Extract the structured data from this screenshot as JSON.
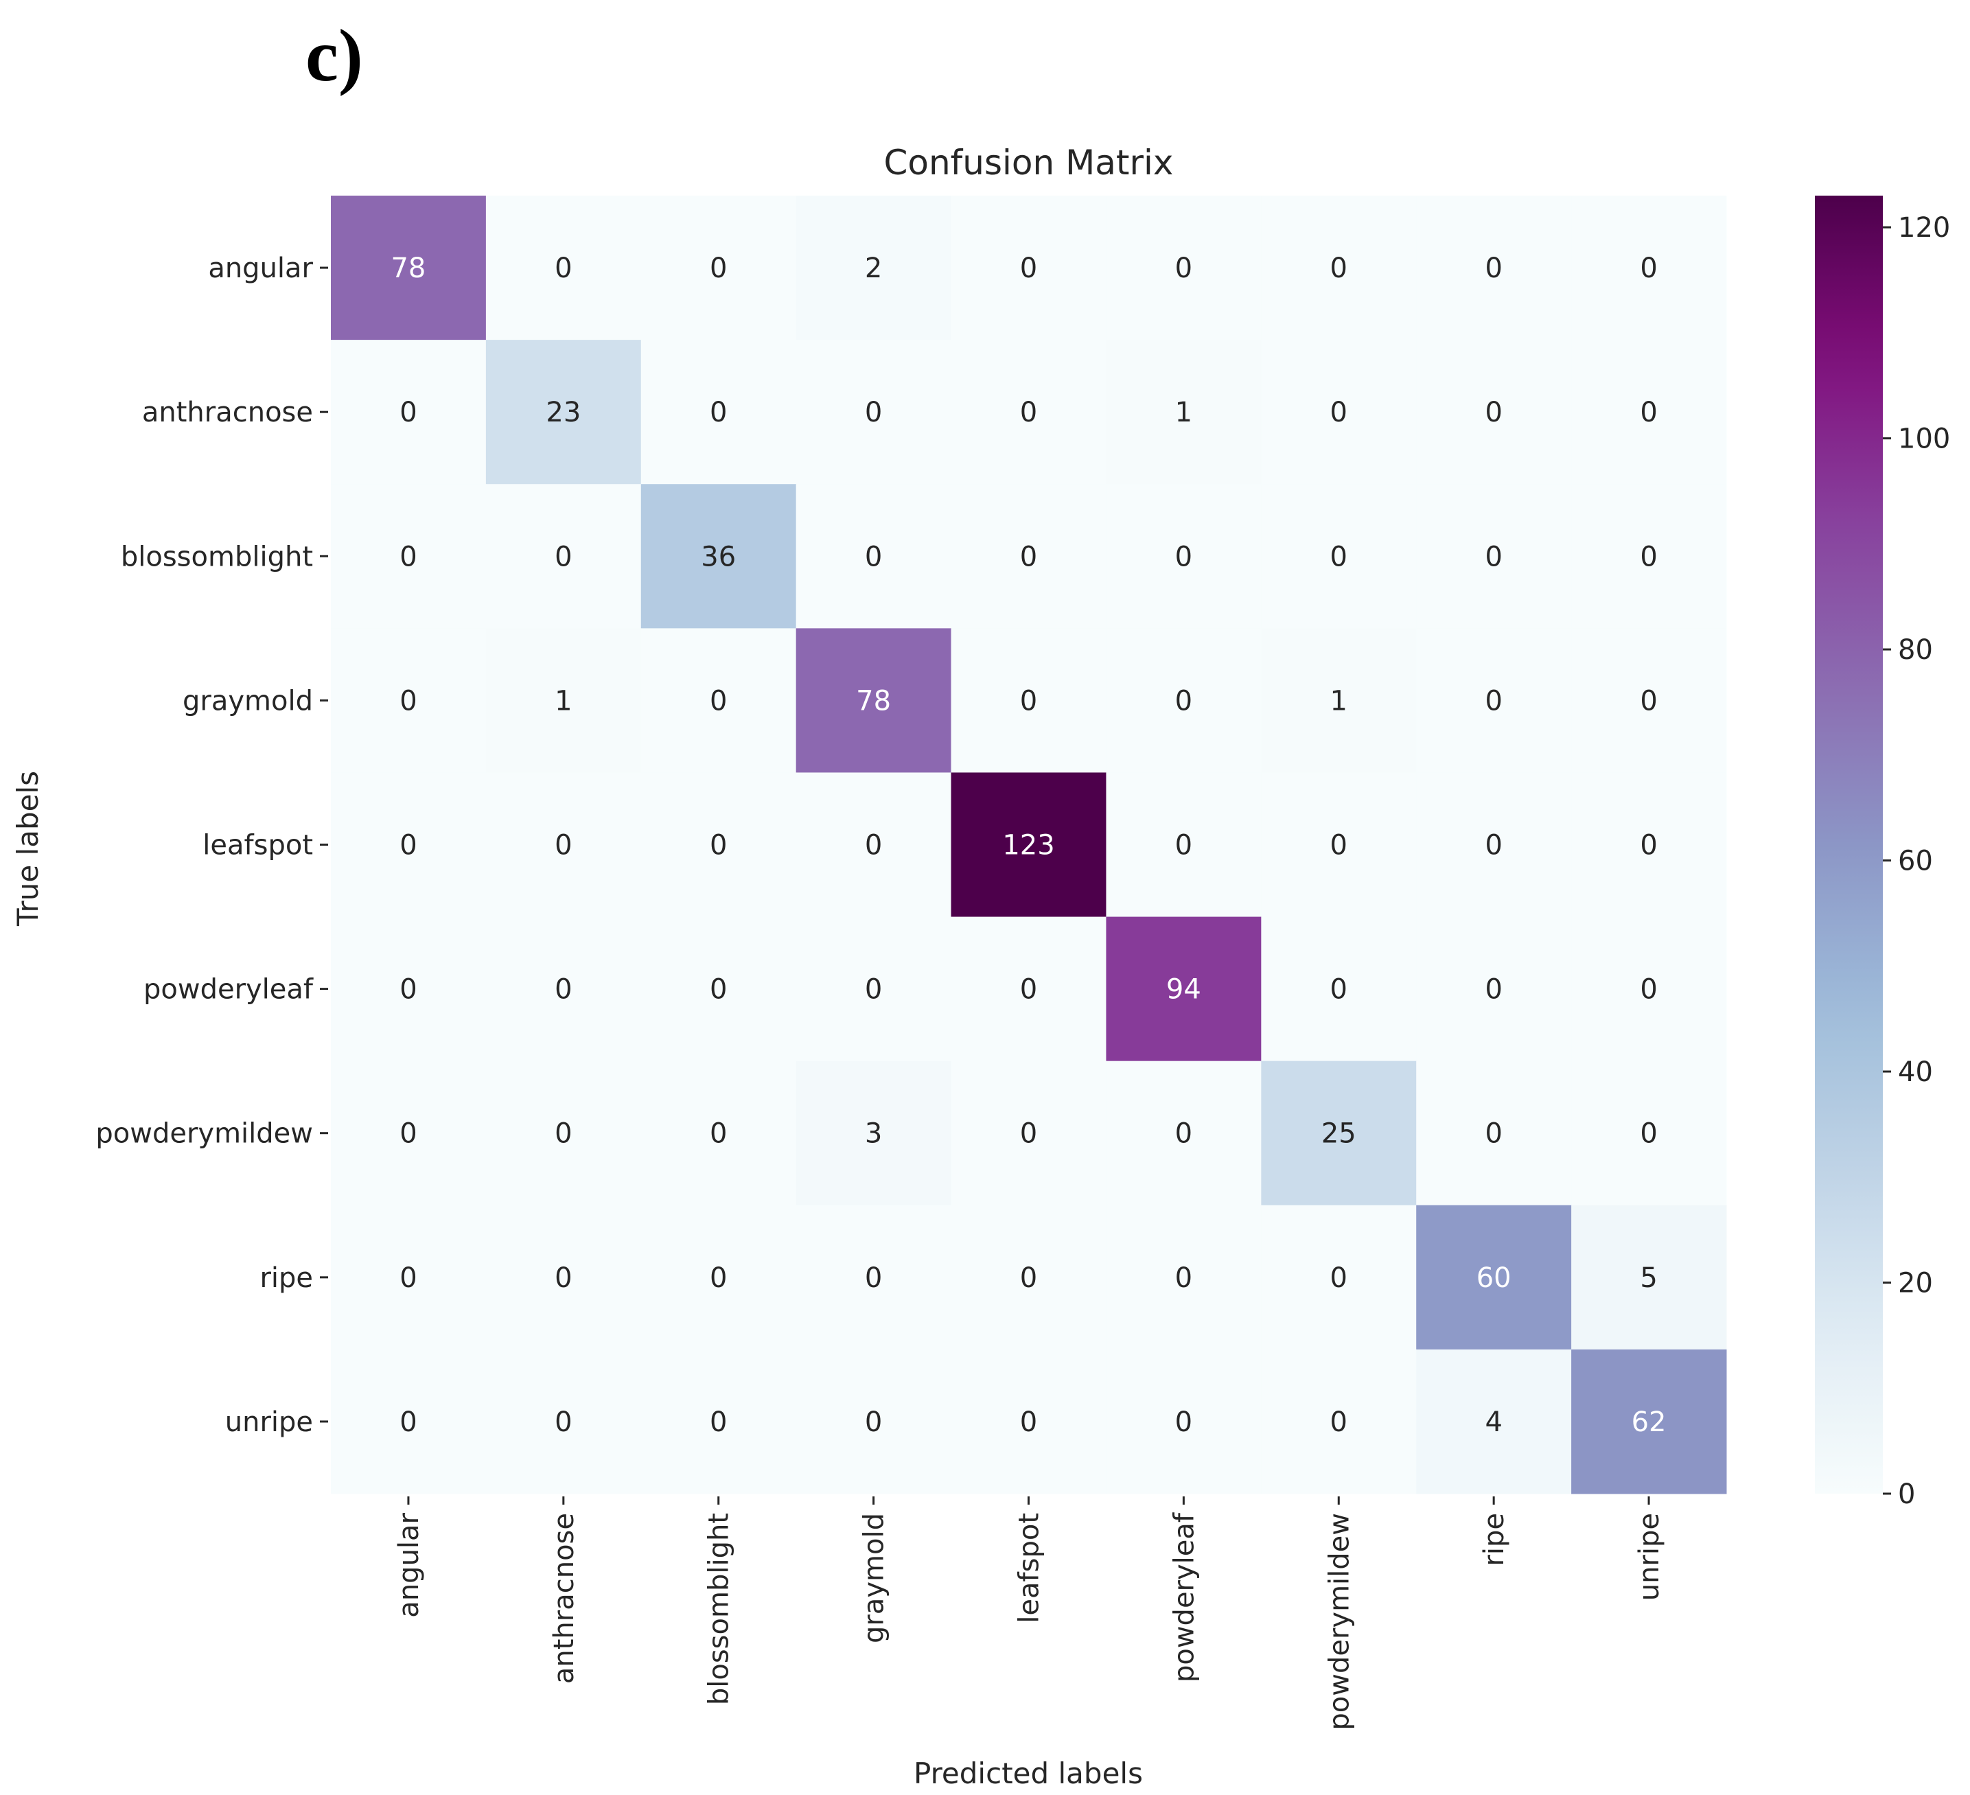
{
  "panel_label": "c)",
  "chart_data": {
    "type": "heatmap",
    "title": "Confusion Matrix",
    "xlabel": "Predicted labels",
    "ylabel": "True labels",
    "categories": [
      "angular",
      "anthracnose",
      "blossomblight",
      "graymold",
      "leafspot",
      "powderyleaf",
      "powderymildew",
      "ripe",
      "unripe"
    ],
    "matrix": [
      [
        78,
        0,
        0,
        2,
        0,
        0,
        0,
        0,
        0
      ],
      [
        0,
        23,
        0,
        0,
        0,
        1,
        0,
        0,
        0
      ],
      [
        0,
        0,
        36,
        0,
        0,
        0,
        0,
        0,
        0
      ],
      [
        0,
        1,
        0,
        78,
        0,
        0,
        1,
        0,
        0
      ],
      [
        0,
        0,
        0,
        0,
        123,
        0,
        0,
        0,
        0
      ],
      [
        0,
        0,
        0,
        0,
        0,
        94,
        0,
        0,
        0
      ],
      [
        0,
        0,
        0,
        3,
        0,
        0,
        25,
        0,
        0
      ],
      [
        0,
        0,
        0,
        0,
        0,
        0,
        0,
        60,
        5
      ],
      [
        0,
        0,
        0,
        0,
        0,
        0,
        0,
        4,
        62
      ]
    ],
    "colormap": "BuPu",
    "colorbar": {
      "range": [
        0,
        123
      ],
      "ticks": [
        0,
        20,
        40,
        60,
        80,
        100,
        120
      ]
    }
  }
}
